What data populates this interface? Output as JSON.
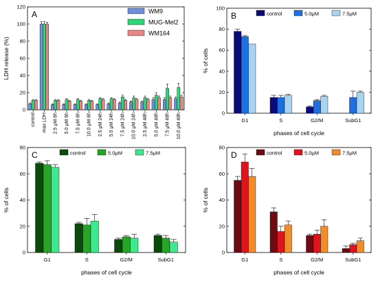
{
  "chart_data": [
    {
      "id": "A",
      "type": "bar",
      "panel_label": "A",
      "ylabel": "LDH release (%)",
      "xlabel": "",
      "ylim": [
        0,
        120
      ],
      "yticks": [
        0,
        20,
        40,
        60,
        80,
        100,
        120
      ],
      "legend": "top-right",
      "categories": [
        "control",
        "max LDH",
        "2.5 μM 6h",
        "5.0 μM 6h",
        "7.5 μM 6h",
        "10.0 μM 6h",
        "2.5 μM 24h",
        "5.0 μM 24h",
        "7.5 μM 24h",
        "10.0 μM 24h",
        "2.5 μM 48h",
        "5.0 μM 48h",
        "7.5 μM 48h",
        "10.0 μM 48h"
      ],
      "series": [
        {
          "name": "WM9",
          "color": "#6f8fdc",
          "values": [
            7,
            100,
            6,
            6,
            6,
            6,
            6,
            7,
            8,
            9,
            9,
            12,
            12,
            13
          ],
          "errors": [
            1,
            3,
            1,
            1,
            1,
            1,
            1,
            1,
            1,
            1,
            1,
            2,
            2,
            2
          ]
        },
        {
          "name": "MUG-Mel2",
          "color": "#2fd77a",
          "values": [
            11,
            100,
            11,
            12,
            12,
            11,
            13,
            13,
            15,
            14,
            14,
            17,
            25,
            26
          ],
          "errors": [
            1,
            3,
            1,
            1,
            1,
            1,
            1,
            1,
            2,
            2,
            2,
            3,
            5,
            5
          ]
        },
        {
          "name": "WM164",
          "color": "#e98585",
          "values": [
            11,
            100,
            11,
            10,
            10,
            10,
            12,
            12,
            11,
            12,
            12,
            14,
            14,
            15
          ],
          "errors": [
            1,
            2,
            1,
            1,
            1,
            1,
            1,
            1,
            1,
            1,
            1,
            2,
            2,
            2
          ]
        }
      ]
    },
    {
      "id": "B",
      "type": "bar",
      "panel_label": "B",
      "ylabel": "% of cells",
      "xlabel": "phases of cell cycle",
      "ylim": [
        0,
        100
      ],
      "yticks": [
        0,
        20,
        40,
        60,
        80,
        100
      ],
      "legend": "top-right",
      "categories": [
        "G1",
        "S",
        "G2/M",
        "SubG1"
      ],
      "series": [
        {
          "name": "control",
          "color": "#0a0a7a",
          "values": [
            78,
            15,
            6,
            0
          ],
          "errors": [
            2,
            2,
            1,
            0
          ]
        },
        {
          "name": "5.0μM",
          "color": "#1e6fe0",
          "values": [
            73,
            15,
            12,
            15
          ],
          "errors": [
            1,
            2,
            1,
            6
          ]
        },
        {
          "name": "7.5μM",
          "color": "#a8d4f2",
          "values": [
            66,
            17,
            16,
            20
          ],
          "errors": [
            0,
            1,
            1,
            1
          ]
        }
      ]
    },
    {
      "id": "C",
      "type": "bar",
      "panel_label": "C",
      "ylabel": "% of cells",
      "xlabel": "phases of cell cycle",
      "ylim": [
        0,
        80
      ],
      "yticks": [
        0,
        20,
        40,
        60,
        80
      ],
      "legend": "top-right",
      "categories": [
        "G1",
        "S",
        "G2/M",
        "SubG1"
      ],
      "series": [
        {
          "name": "control",
          "color": "#0b4a0b",
          "values": [
            68,
            22,
            10,
            13
          ],
          "errors": [
            1,
            1,
            1,
            1
          ]
        },
        {
          "name": "5.0μM",
          "color": "#27a527",
          "values": [
            67,
            21,
            12,
            11
          ],
          "errors": [
            3,
            5,
            1,
            2
          ]
        },
        {
          "name": "7.5μM",
          "color": "#3fe88c",
          "values": [
            65,
            24,
            11,
            8
          ],
          "errors": [
            2,
            5,
            3,
            2
          ]
        }
      ]
    },
    {
      "id": "D",
      "type": "bar",
      "panel_label": "D",
      "ylabel": "% of cells",
      "xlabel": "phases of cell cycle",
      "ylim": [
        0,
        80
      ],
      "yticks": [
        0,
        20,
        40,
        60,
        80
      ],
      "legend": "top-right",
      "categories": [
        "G1",
        "S",
        "G2/M",
        "SubG1"
      ],
      "series": [
        {
          "name": "control",
          "color": "#6e0b12",
          "values": [
            55,
            31,
            13,
            3
          ],
          "errors": [
            3,
            3,
            1,
            2
          ]
        },
        {
          "name": "5.0μM",
          "color": "#e0141e",
          "values": [
            69,
            16,
            14,
            6
          ],
          "errors": [
            6,
            4,
            3,
            1
          ]
        },
        {
          "name": "7.5μM",
          "color": "#f28c2a",
          "values": [
            58,
            21,
            20,
            9
          ],
          "errors": [
            6,
            3,
            5,
            2
          ]
        }
      ]
    }
  ]
}
